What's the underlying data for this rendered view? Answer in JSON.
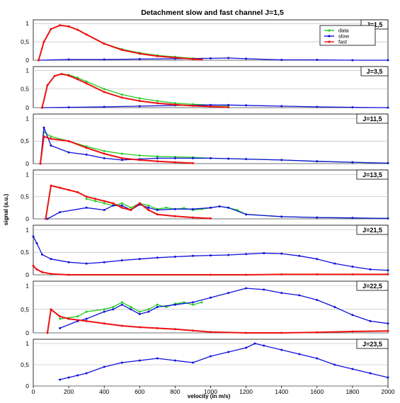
{
  "chart_data": {
    "type": "scatter",
    "title": "Detachment slow and fast channel J=1,5",
    "xlabel": "velocity (in m/s)",
    "ylabel": "signal (a.u.)",
    "xlim": [
      0,
      2000
    ],
    "xticks": [
      "0",
      "200",
      "400",
      "600",
      "800",
      "1000",
      "1200",
      "1400",
      "1600",
      "1800",
      "2000"
    ],
    "yticks": [
      "0",
      "0,5",
      "1"
    ],
    "legend": {
      "position": "top-right",
      "entries": [
        "data",
        "slow",
        "fast"
      ]
    },
    "colors": {
      "data": "#22cc22",
      "slow": "#1010dd",
      "fast": "#ee1111"
    },
    "panels": [
      {
        "label": "J=1,5",
        "ylim": [
          0,
          1.1
        ],
        "series": [
          {
            "name": "data",
            "x": [
              30,
              60,
              100,
              150,
              200,
              250,
              300,
              400,
              500,
              600,
              700,
              800,
              900,
              950
            ],
            "y": [
              0,
              0.5,
              0.85,
              0.95,
              0.92,
              0.83,
              0.7,
              0.45,
              0.3,
              0.2,
              0.13,
              0.09,
              0.05,
              0.04
            ]
          },
          {
            "name": "slow",
            "x": [
              30,
              200,
              400,
              600,
              800,
              1000,
              1100,
              1200,
              1400,
              1600,
              1800,
              2000
            ],
            "y": [
              0,
              0.02,
              0.02,
              0.03,
              0.04,
              0.05,
              0.06,
              0.04,
              0.01,
              0.01,
              0,
              0
            ]
          },
          {
            "name": "fast",
            "x": [
              30,
              60,
              100,
              150,
              200,
              250,
              300,
              400,
              500,
              600,
              700,
              800,
              900,
              950
            ],
            "y": [
              0,
              0.5,
              0.85,
              0.95,
              0.92,
              0.83,
              0.7,
              0.45,
              0.28,
              0.18,
              0.11,
              0.07,
              0.03,
              0.02
            ]
          }
        ]
      },
      {
        "label": "J=3,5",
        "ylim": [
          0,
          1.1
        ],
        "series": [
          {
            "name": "data",
            "x": [
              50,
              80,
              120,
              160,
              200,
              250,
              300,
              400,
              500,
              600,
              700,
              800,
              900,
              1000,
              1100
            ],
            "y": [
              0,
              0.6,
              0.85,
              0.9,
              0.88,
              0.8,
              0.7,
              0.5,
              0.35,
              0.25,
              0.18,
              0.12,
              0.09,
              0.07,
              0.05
            ]
          },
          {
            "name": "slow",
            "x": [
              50,
              200,
              400,
              600,
              800,
              1000,
              1100,
              1200,
              1400,
              1600,
              1800,
              2000
            ],
            "y": [
              0,
              0.01,
              0.02,
              0.04,
              0.06,
              0.07,
              0.07,
              0.06,
              0.04,
              0.02,
              0.01,
              0
            ]
          },
          {
            "name": "fast",
            "x": [
              50,
              80,
              120,
              160,
              200,
              250,
              300,
              400,
              500,
              600,
              700,
              800,
              900,
              1000,
              1100
            ],
            "y": [
              0,
              0.6,
              0.85,
              0.9,
              0.86,
              0.76,
              0.65,
              0.42,
              0.27,
              0.18,
              0.12,
              0.08,
              0.05,
              0.03,
              0.01
            ]
          }
        ]
      },
      {
        "label": "J=11,5",
        "ylim": [
          0,
          1.1
        ],
        "series": [
          {
            "name": "data",
            "x": [
              40,
              60,
              100,
              200,
              300,
              400,
              500,
              600,
              700,
              800,
              900,
              1000,
              1100,
              1200,
              1400,
              1600,
              1800,
              2000
            ],
            "y": [
              0,
              0.7,
              0.6,
              0.5,
              0.38,
              0.28,
              0.22,
              0.18,
              0.16,
              0.15,
              0.14,
              0.12,
              0.11,
              0.1,
              0.08,
              0.05,
              0.03,
              0.01
            ]
          },
          {
            "name": "slow",
            "x": [
              40,
              60,
              100,
              200,
              300,
              400,
              500,
              600,
              700,
              800,
              900,
              1000,
              1100,
              1200,
              1400,
              1600,
              1800,
              2000
            ],
            "y": [
              0,
              0.8,
              0.4,
              0.25,
              0.2,
              0.12,
              0.08,
              0.1,
              0.12,
              0.12,
              0.12,
              0.12,
              0.11,
              0.1,
              0.08,
              0.05,
              0.03,
              0.01
            ]
          },
          {
            "name": "fast",
            "x": [
              40,
              60,
              100,
              200,
              300,
              400,
              500,
              600,
              700,
              800,
              900
            ],
            "y": [
              0,
              0.6,
              0.55,
              0.5,
              0.35,
              0.22,
              0.12,
              0.08,
              0.05,
              0.03,
              0.01
            ]
          }
        ]
      },
      {
        "label": "J=13,5",
        "ylim": [
          0,
          1.1
        ],
        "series": [
          {
            "name": "data",
            "x": [
              300,
              350,
              400,
              450,
              500,
              550,
              600,
              650,
              700,
              750,
              800,
              850,
              900,
              950,
              1000,
              1050,
              1100,
              1150,
              1200,
              1400,
              1600,
              1800,
              2000
            ],
            "y": [
              0.45,
              0.4,
              0.35,
              0.3,
              0.35,
              0.25,
              0.35,
              0.3,
              0.22,
              0.25,
              0.22,
              0.24,
              0.2,
              0.22,
              0.25,
              0.28,
              0.25,
              0.2,
              0.1,
              0.05,
              0.03,
              0.02,
              0.01
            ]
          },
          {
            "name": "slow",
            "x": [
              80,
              150,
              300,
              400,
              450,
              500,
              550,
              600,
              650,
              700,
              800,
              900,
              1000,
              1050,
              1100,
              1200,
              1400,
              1600,
              1800,
              2000
            ],
            "y": [
              0,
              0.15,
              0.25,
              0.2,
              0.3,
              0.3,
              0.2,
              0.32,
              0.25,
              0.2,
              0.22,
              0.22,
              0.25,
              0.28,
              0.25,
              0.1,
              0.05,
              0.03,
              0.02,
              0.01
            ]
          },
          {
            "name": "fast",
            "x": [
              70,
              100,
              150,
              200,
              250,
              300,
              350,
              400,
              450,
              500,
              550,
              600,
              650,
              700,
              800,
              900,
              1000
            ],
            "y": [
              0,
              0.75,
              0.7,
              0.65,
              0.6,
              0.5,
              0.45,
              0.4,
              0.35,
              0.25,
              0.2,
              0.35,
              0.2,
              0.1,
              0.06,
              0.03,
              0.01
            ]
          }
        ]
      },
      {
        "label": "J=21,5",
        "ylim": [
          0,
          1.1
        ],
        "series": [
          {
            "name": "slow",
            "x": [
              0,
              20,
              50,
              100,
              200,
              300,
              400,
              500,
              600,
              700,
              800,
              900,
              1000,
              1100,
              1200,
              1300,
              1400,
              1500,
              1600,
              1700,
              1800,
              1900,
              2000
            ],
            "y": [
              0.85,
              0.7,
              0.45,
              0.35,
              0.28,
              0.25,
              0.28,
              0.32,
              0.35,
              0.38,
              0.4,
              0.42,
              0.43,
              0.44,
              0.46,
              0.48,
              0.47,
              0.42,
              0.35,
              0.25,
              0.18,
              0.12,
              0.1
            ]
          },
          {
            "name": "fast",
            "x": [
              0,
              20,
              50,
              100,
              200,
              1000,
              1200,
              1400,
              1600,
              1800,
              2000
            ],
            "y": [
              0.2,
              0.12,
              0.06,
              0.02,
              0,
              0,
              0,
              0.01,
              0.01,
              0.01,
              0.01
            ]
          }
        ]
      },
      {
        "label": "J=22,5",
        "ylim": [
          0,
          1.1
        ],
        "series": [
          {
            "name": "data",
            "x": [
              150,
              250,
              300,
              400,
              450,
              500,
              550,
              600,
              650,
              700,
              750,
              800,
              850,
              900,
              950
            ],
            "y": [
              0.3,
              0.35,
              0.45,
              0.5,
              0.55,
              0.65,
              0.55,
              0.45,
              0.5,
              0.6,
              0.55,
              0.62,
              0.65,
              0.6,
              0.65
            ]
          },
          {
            "name": "slow",
            "x": [
              150,
              250,
              300,
              400,
              450,
              500,
              550,
              600,
              650,
              700,
              800,
              900,
              1000,
              1100,
              1200,
              1300,
              1400,
              1500,
              1600,
              1700,
              1800,
              1900,
              2000
            ],
            "y": [
              0.1,
              0.25,
              0.3,
              0.45,
              0.5,
              0.6,
              0.5,
              0.4,
              0.45,
              0.55,
              0.6,
              0.65,
              0.75,
              0.85,
              0.95,
              0.92,
              0.85,
              0.8,
              0.7,
              0.55,
              0.38,
              0.25,
              0.2
            ]
          },
          {
            "name": "fast",
            "x": [
              80,
              100,
              150,
              200,
              300,
              400,
              500,
              600,
              700,
              800,
              900,
              1000,
              1200,
              1400,
              1600,
              1800,
              2000
            ],
            "y": [
              0,
              0.5,
              0.35,
              0.3,
              0.25,
              0.2,
              0.15,
              0.12,
              0.1,
              0.08,
              0.05,
              0.02,
              0,
              0,
              0.01,
              0.03,
              0.04
            ]
          }
        ]
      },
      {
        "label": "J=23,5",
        "ylim": [
          0,
          1.1
        ],
        "series": [
          {
            "name": "slow",
            "x": [
              150,
              200,
              250,
              300,
              400,
              500,
              600,
              700,
              800,
              900,
              1000,
              1100,
              1200,
              1250,
              1300,
              1400,
              1500,
              1600,
              1700,
              1800,
              1900,
              2000
            ],
            "y": [
              0.15,
              0.2,
              0.25,
              0.3,
              0.45,
              0.55,
              0.6,
              0.65,
              0.6,
              0.55,
              0.7,
              0.8,
              0.9,
              1.0,
              0.95,
              0.85,
              0.75,
              0.65,
              0.5,
              0.4,
              0.3,
              0.2
            ]
          }
        ]
      }
    ]
  }
}
